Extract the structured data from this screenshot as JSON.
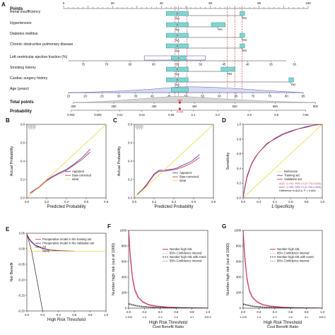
{
  "colors": {
    "box_fill": "#7fd6d0",
    "box_stroke": "#3a8fa0",
    "violin": "#5b5fb5",
    "ref_red": "#d62020",
    "apparent": "#5a4aa8",
    "bias": "#c93a5a",
    "ideal": "#e8d84a",
    "train": "#5a4aa8",
    "valid": "#c93a5a",
    "all": "#222222",
    "none": "#e8d84a"
  },
  "panel_letters": [
    "A",
    "B",
    "C",
    "D",
    "E",
    "F",
    "G"
  ],
  "nomogram": {
    "points_label": "Points",
    "points_ticks": [
      "0",
      "20",
      "40",
      "60",
      "80",
      "100"
    ],
    "rows": [
      {
        "label": "Renal insufficiency",
        "no": "No",
        "yes": "Yes"
      },
      {
        "label": "Hypertension",
        "no": "No",
        "yes": "Yes"
      },
      {
        "label": "Diabetes mellitus",
        "no": "No",
        "yes": "Yes"
      },
      {
        "label": "Chronic obstructive pulmonary disease",
        "no": "No",
        "yes": "Yes"
      },
      {
        "label": "Left ventricular ejection fraction (%)",
        "ticks": [
          "75",
          "70",
          "65",
          "60",
          "55",
          "50",
          "45",
          "40",
          "35",
          "30"
        ]
      },
      {
        "label": "Smoking history",
        "no": "No",
        "yes": "Yes"
      },
      {
        "label": "Cardiac surgery history",
        "no": "No",
        "yes": "Yes"
      },
      {
        "label": "Age (years)",
        "ticks": [
          "15",
          "20",
          "25",
          "30",
          "35",
          "40",
          "45",
          "50",
          "55",
          "60",
          "65",
          "70",
          "75",
          "80",
          "85"
        ]
      }
    ],
    "total_points_label": "Total points",
    "total_ticks": [
      "300",
      "350",
      "400",
      "450",
      "500",
      "550",
      "600"
    ],
    "probability_label": "Probability",
    "probability_ticks": [
      "0.002",
      "0.005",
      "0.01",
      "0.02",
      "0.05",
      "0.1",
      "0.2",
      "0.5",
      "0.8",
      "0.92"
    ],
    "marker_label": "0.109",
    "marker_total": "430"
  },
  "chart_data": [
    {
      "panel": "B",
      "type": "line",
      "xlabel": "Predicted Probability",
      "ylabel": "Actual Probability",
      "xlim": [
        0,
        0.8
      ],
      "ylim": [
        0,
        0.8
      ],
      "x_ticks": [
        "0.0",
        "0.2",
        "0.4",
        "0.6",
        "0.8"
      ],
      "y_ticks": [
        "0.0",
        "0.2",
        "0.4",
        "0.6",
        "0.8"
      ],
      "legend": [
        "Apparent",
        "Bias-corrected",
        "Ideal"
      ],
      "series": [
        {
          "name": "Apparent",
          "x": [
            0.03,
            0.08,
            0.12,
            0.18,
            0.25,
            0.32,
            0.4,
            0.48,
            0.56,
            0.64
          ],
          "y": [
            0.05,
            0.09,
            0.12,
            0.18,
            0.23,
            0.27,
            0.31,
            0.37,
            0.44,
            0.53
          ]
        },
        {
          "name": "Bias-corrected",
          "x": [
            0.03,
            0.08,
            0.12,
            0.18,
            0.25,
            0.32,
            0.4,
            0.48,
            0.56,
            0.64
          ],
          "y": [
            0.05,
            0.08,
            0.11,
            0.17,
            0.22,
            0.26,
            0.3,
            0.36,
            0.42,
            0.5
          ]
        },
        {
          "name": "Ideal",
          "x": [
            0,
            0.8
          ],
          "y": [
            0,
            0.8
          ]
        }
      ]
    },
    {
      "panel": "C",
      "type": "line",
      "xlabel": "Predicted Probability",
      "ylabel": "Actual Probability",
      "xlim": [
        0,
        0.8
      ],
      "ylim": [
        0,
        0.8
      ],
      "x_ticks": [
        "0.0",
        "0.2",
        "0.4",
        "0.6",
        "0.8"
      ],
      "y_ticks": [
        "0.0",
        "0.2",
        "0.4",
        "0.6",
        "0.8"
      ],
      "legend": [
        "Apparent",
        "Bias-corrected",
        "Ideal"
      ],
      "series": [
        {
          "name": "Apparent",
          "x": [
            0.03,
            0.08,
            0.12,
            0.16,
            0.2,
            0.25,
            0.3,
            0.36,
            0.42,
            0.5,
            0.58,
            0.66
          ],
          "y": [
            0.04,
            0.09,
            0.14,
            0.2,
            0.26,
            0.3,
            0.3,
            0.31,
            0.32,
            0.36,
            0.4,
            0.47
          ]
        },
        {
          "name": "Bias-corrected",
          "x": [
            0.03,
            0.08,
            0.12,
            0.16,
            0.2,
            0.25,
            0.3,
            0.36,
            0.42,
            0.5,
            0.58,
            0.66
          ],
          "y": [
            0.04,
            0.08,
            0.13,
            0.19,
            0.25,
            0.29,
            0.29,
            0.3,
            0.31,
            0.34,
            0.38,
            0.44
          ]
        },
        {
          "name": "Ideal",
          "x": [
            0,
            0.8
          ],
          "y": [
            0,
            0.8
          ]
        }
      ]
    },
    {
      "panel": "D",
      "type": "line",
      "xlabel": "1-Specificity",
      "ylabel": "Sensitivity",
      "xlim": [
        0,
        1
      ],
      "ylim": [
        0,
        1
      ],
      "x_ticks": [
        "0.0",
        "0.2",
        "0.4",
        "0.6",
        "0.8",
        "1.0"
      ],
      "y_ticks": [
        "0.0",
        "0.2",
        "0.4",
        "0.6",
        "0.8",
        "1.0"
      ],
      "legend": [
        "Reference",
        "Training set",
        "Validation set"
      ],
      "annotations": [
        "AUC: 0.792, 95% CI (0.774-0.810)",
        "AUC: 0.789, 95% CI (0.762-0.816)",
        "Difference in AUCs: P = 0.862"
      ],
      "series": [
        {
          "name": "Reference",
          "x": [
            0,
            1
          ],
          "y": [
            0,
            1
          ]
        },
        {
          "name": "Training set",
          "x": [
            0,
            0.02,
            0.05,
            0.1,
            0.15,
            0.2,
            0.3,
            0.4,
            0.5,
            0.6,
            0.7,
            0.8,
            0.9,
            1.0
          ],
          "y": [
            0,
            0.14,
            0.3,
            0.45,
            0.55,
            0.62,
            0.73,
            0.81,
            0.87,
            0.91,
            0.94,
            0.97,
            0.99,
            1.0
          ]
        },
        {
          "name": "Validation set",
          "x": [
            0,
            0.02,
            0.05,
            0.1,
            0.15,
            0.2,
            0.3,
            0.4,
            0.5,
            0.6,
            0.7,
            0.8,
            0.9,
            1.0
          ],
          "y": [
            0,
            0.12,
            0.28,
            0.44,
            0.54,
            0.62,
            0.74,
            0.8,
            0.86,
            0.9,
            0.94,
            0.96,
            0.99,
            1.0
          ]
        }
      ]
    },
    {
      "panel": "E",
      "type": "line",
      "xlabel": "High Risk Threshold",
      "ylabel": "Net Benefit",
      "xlim": [
        0,
        1
      ],
      "ylim": [
        -0.2,
        0.06
      ],
      "x_ticks": [
        "0.0",
        "0.2",
        "0.4",
        "0.6",
        "0.8",
        "1.0"
      ],
      "y_ticks": [
        "-0.20",
        "-0.15",
        "-0.10",
        "-0.05",
        "0.00",
        "0.05"
      ],
      "legend": [
        "Preoperative model in the training set",
        "Preoperative model in the validation set",
        "All",
        "None"
      ],
      "series": [
        {
          "name": "Preoperative model in the training set",
          "x": [
            0,
            0.05,
            0.1,
            0.2,
            0.3,
            0.4,
            0.5,
            0.6
          ],
          "y": [
            0.055,
            0.035,
            0.022,
            0.01,
            0.004,
            0.002,
            0.001,
            0.0
          ]
        },
        {
          "name": "Preoperative model in the validation set",
          "x": [
            0,
            0.05,
            0.1,
            0.2,
            0.3,
            0.4,
            0.5,
            0.6
          ],
          "y": [
            0.052,
            0.032,
            0.02,
            0.008,
            0.003,
            0.001,
            0.0,
            0.0
          ]
        },
        {
          "name": "All",
          "x": [
            0,
            0.06,
            0.2
          ],
          "y": [
            0.058,
            0.0,
            -0.2
          ]
        },
        {
          "name": "None",
          "x": [
            0,
            1
          ],
          "y": [
            0,
            0
          ]
        }
      ]
    },
    {
      "panel": "F",
      "type": "line",
      "xlabel": "High Risk Threshold",
      "ylabel": "Number high risk (out of 1000)",
      "x2label": "Cost Benefit Ratio",
      "xlim": [
        0,
        1
      ],
      "ylim": [
        0,
        1000
      ],
      "x_ticks": [
        "0.0",
        "0.2",
        "0.4",
        "0.6",
        "0.8",
        "1.0"
      ],
      "y_ticks": [
        "0",
        "200",
        "400",
        "600",
        "800",
        "1000"
      ],
      "x2_ticks": [
        "1:100",
        "1:4",
        "2:3",
        "3:2",
        "4:1",
        "100:1"
      ],
      "legend": [
        "Number high risk",
        "95% Confidence interval",
        "Number high risk with event",
        "95% Confidence interval"
      ],
      "series": [
        {
          "name": "Number high risk",
          "x": [
            0,
            0.02,
            0.05,
            0.08,
            0.12,
            0.18,
            0.25,
            0.35,
            0.5,
            0.7,
            1.0
          ],
          "y": [
            1000,
            680,
            380,
            230,
            140,
            80,
            45,
            25,
            12,
            5,
            0
          ]
        },
        {
          "name": "Number high risk with event",
          "x": [
            0,
            0.02,
            0.05,
            0.08,
            0.12,
            0.18,
            0.25,
            0.35,
            0.5,
            0.7,
            1.0
          ],
          "y": [
            55,
            50,
            42,
            35,
            27,
            20,
            14,
            9,
            5,
            2,
            0
          ]
        }
      ]
    },
    {
      "panel": "G",
      "type": "line",
      "xlabel": "High Risk Threshold",
      "ylabel": "Number high risk (out of 1000)",
      "x2label": "Cost Benefit Ratio",
      "xlim": [
        0,
        1
      ],
      "ylim": [
        0,
        1000
      ],
      "x_ticks": [
        "0.0",
        "0.2",
        "0.4",
        "0.6",
        "0.8",
        "1.0"
      ],
      "y_ticks": [
        "0",
        "200",
        "400",
        "600",
        "800",
        "1000"
      ],
      "x2_ticks": [
        "1:100",
        "1:4",
        "2:3",
        "3:2",
        "4:1",
        "100:1"
      ],
      "legend": [
        "Number high risk",
        "95% Confidence interval",
        "Number high risk with event",
        "95% Confidence interval"
      ],
      "series": [
        {
          "name": "Number high risk",
          "x": [
            0,
            0.02,
            0.05,
            0.08,
            0.12,
            0.18,
            0.25,
            0.35,
            0.5,
            0.7,
            1.0
          ],
          "y": [
            1000,
            670,
            370,
            220,
            135,
            78,
            44,
            24,
            11,
            4,
            0
          ]
        },
        {
          "name": "Number high risk with event",
          "x": [
            0,
            0.02,
            0.05,
            0.08,
            0.12,
            0.18,
            0.25,
            0.35,
            0.5,
            0.7,
            1.0
          ],
          "y": [
            52,
            47,
            40,
            33,
            25,
            18,
            12,
            8,
            4,
            2,
            0
          ]
        }
      ]
    }
  ]
}
